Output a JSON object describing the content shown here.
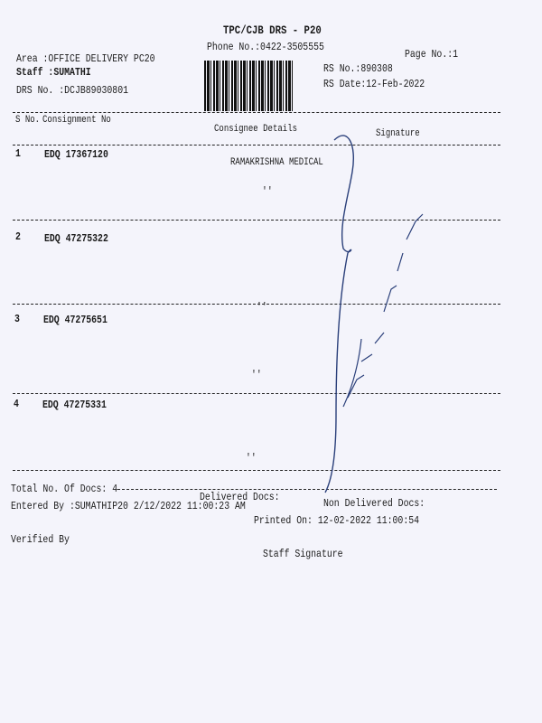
{
  "header": {
    "title": "TPC/CJB  DRS - P20",
    "phone": "Phone No.:0422-3505555",
    "area": "Area :OFFICE DELIVERY PC20",
    "staff": "Staff :SUMATHI",
    "drs_no": "DRS No. :DCJB89030801",
    "page_no": "Page No.:1",
    "rs_no": "RS No.:890308",
    "rs_date": "RS Date:12-Feb-2022"
  },
  "table": {
    "columns": {
      "sno": "S No.",
      "consignment": "Consignment No",
      "consignee": "Consignee Details",
      "signature": "Signature"
    },
    "rows": [
      {
        "sno": "1",
        "consignment": "EDQ 17367120",
        "consignee": "RAMAKRISHNA MEDICAL",
        "ditto": "''"
      },
      {
        "sno": "2",
        "consignment": "EDQ 47275322",
        "consignee": "",
        "ditto": "''"
      },
      {
        "sno": "3",
        "consignment": "EDQ 47275651",
        "consignee": "",
        "ditto": "''"
      },
      {
        "sno": "4",
        "consignment": "EDQ 47275331",
        "consignee": "",
        "ditto": "''"
      }
    ]
  },
  "footer": {
    "total_docs": "Total No. Of Docs:  4",
    "delivered_docs": "Delivered Docs:",
    "non_delivered_docs": "Non Delivered Docs:",
    "entered_by": "Entered By :SUMATHIP20 2/12/2022 11:00:23 AM",
    "printed_on": "Printed On: 12-02-2022 11:00:54",
    "verified_by": "Verified By",
    "staff_signature": "Staff Signature"
  },
  "colors": {
    "ink": "#1a1a1a",
    "pen": "#2a3f7a",
    "paper": "#f4f4fb"
  }
}
